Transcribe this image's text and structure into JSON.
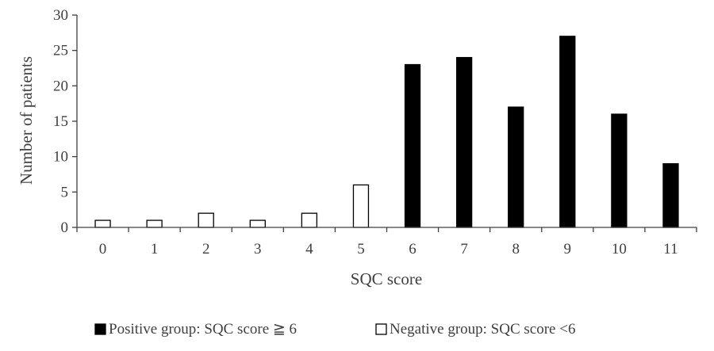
{
  "chart_data": {
    "type": "bar",
    "title": "",
    "xlabel": "SQC score",
    "ylabel": "Number of patients",
    "ylim": [
      0,
      30
    ],
    "yticks": [
      0,
      5,
      10,
      15,
      20,
      25,
      30
    ],
    "grid": false,
    "legend_position": "bottom",
    "categories": [
      "0",
      "1",
      "2",
      "3",
      "4",
      "5",
      "6",
      "7",
      "8",
      "9",
      "10",
      "11"
    ],
    "series": [
      {
        "name": "Positive group: SQC score ≧ 6",
        "color": "#000000",
        "fill": "#000000",
        "values": [
          null,
          null,
          null,
          null,
          null,
          null,
          23,
          24,
          17,
          27,
          16,
          9
        ]
      },
      {
        "name": "Negative group: SQC score <6",
        "color": "#000000",
        "fill": "#ffffff",
        "values": [
          1,
          1,
          2,
          1,
          2,
          6,
          null,
          null,
          null,
          null,
          null,
          null
        ]
      }
    ]
  }
}
